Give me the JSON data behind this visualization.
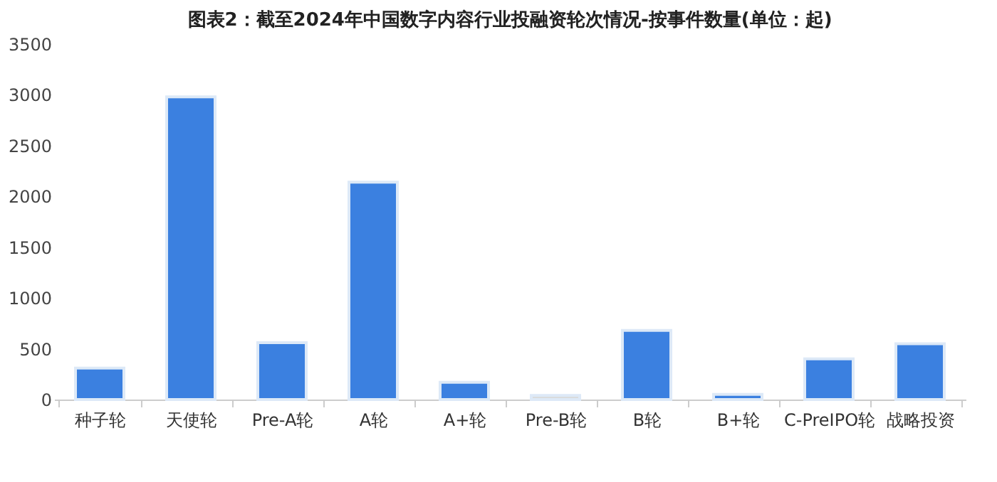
{
  "chart_data": {
    "type": "bar",
    "title": "图表2：截至2024年中国数字内容行业投融资轮次情况-按事件数量(单位：起)",
    "categories": [
      "种子轮",
      "天使轮",
      "Pre-A轮",
      "A轮",
      "A+轮",
      "Pre-B轮",
      "B轮",
      "B+轮",
      "C-PreIPO轮",
      "战略投资"
    ],
    "values": [
      310,
      2980,
      560,
      2140,
      170,
      40,
      680,
      50,
      400,
      550
    ],
    "colors": [
      "#3b80e0",
      "#3b80e0",
      "#3b80e0",
      "#3b80e0",
      "#3b80e0",
      "#d9d9d9",
      "#3b80e0",
      "#3b80e0",
      "#3b80e0",
      "#3b80e0"
    ],
    "ylim": [
      0,
      3500
    ],
    "yticks": [
      0,
      500,
      1000,
      1500,
      2000,
      2500,
      3000,
      3500
    ],
    "grid": false
  }
}
